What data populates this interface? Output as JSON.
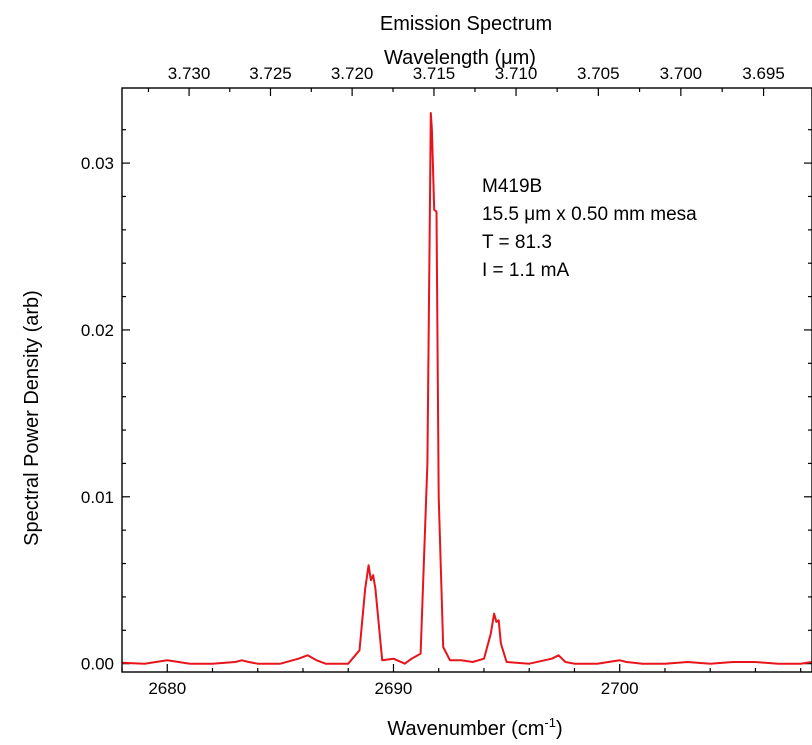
{
  "chart_data": {
    "type": "line",
    "title": "Emission Spectrum",
    "xlabel": "Wavenumber (cm",
    "xlabel_superscript": "-1",
    "xlabel_suffix": ")",
    "x2label": "Wavelength (μm)",
    "ylabel": "Spectral Power Density (arb)",
    "xlim": [
      2678,
      2708.5
    ],
    "ylim": [
      -0.0005,
      0.0345
    ],
    "x_ticks": [
      2680,
      2690,
      2700
    ],
    "x_tick_labels": [
      "2680",
      "2690",
      "2700"
    ],
    "y_ticks": [
      0.0,
      0.01,
      0.02,
      0.03
    ],
    "y_tick_labels": [
      "0.00",
      "0.01",
      "0.02",
      "0.03"
    ],
    "x2_ticks_um": [
      3.73,
      3.725,
      3.72,
      3.715,
      3.71,
      3.705,
      3.7,
      3.695
    ],
    "x2_tick_labels": [
      "3.730",
      "3.725",
      "3.720",
      "3.715",
      "3.710",
      "3.705",
      "3.700",
      "3.695"
    ],
    "annotations": [
      "M419B",
      "15.5 μm x 0.50 mm mesa",
      "T = 81.3",
      "I = 1.1 mA"
    ],
    "line_color": "#e8141c",
    "grid": false,
    "series": [
      {
        "x": [
          2678.0,
          2679.0,
          2680.0,
          2680.5,
          2681.0,
          2682.0,
          2683.0,
          2683.3,
          2683.6,
          2684.0,
          2685.0,
          2685.8,
          2686.2,
          2686.6,
          2687.0,
          2688.0,
          2688.5,
          2688.75,
          2688.9,
          2689.0,
          2689.1,
          2689.2,
          2689.5,
          2690.0,
          2690.5,
          2690.8,
          2691.2,
          2691.5,
          2691.6,
          2691.65,
          2691.7,
          2691.8,
          2691.9,
          2692.0,
          2692.2,
          2692.5,
          2693.0,
          2693.5,
          2694.0,
          2694.3,
          2694.45,
          2694.55,
          2694.65,
          2694.75,
          2695.0,
          2696.0,
          2697.0,
          2697.3,
          2697.6,
          2698.0,
          2699.0,
          2700.0,
          2700.3,
          2701.0,
          2702.0,
          2703.0,
          2704.0,
          2705.0,
          2706.0,
          2707.0,
          2708.0,
          2708.5
        ],
        "y": [
          5e-05,
          0.0,
          0.0002,
          0.0001,
          0.0,
          0.0,
          0.0001,
          0.0002,
          0.0001,
          0.0,
          0.0,
          0.0003,
          0.0005,
          0.0002,
          0.0,
          0.0,
          0.0008,
          0.0045,
          0.0059,
          0.005,
          0.0053,
          0.0045,
          0.0002,
          0.0003,
          0.0,
          0.0003,
          0.0006,
          0.012,
          0.026,
          0.033,
          0.032,
          0.0272,
          0.0271,
          0.01,
          0.001,
          0.0002,
          0.0002,
          0.0001,
          0.0003,
          0.0018,
          0.003,
          0.0025,
          0.0026,
          0.0012,
          0.0001,
          0.0,
          0.0003,
          0.0005,
          0.0001,
          0.0,
          0.0,
          0.0002,
          0.0001,
          0.0,
          0.0,
          0.0001,
          0.0,
          0.0001,
          0.0001,
          0.0,
          0.0,
          0.0001
        ]
      }
    ]
  }
}
